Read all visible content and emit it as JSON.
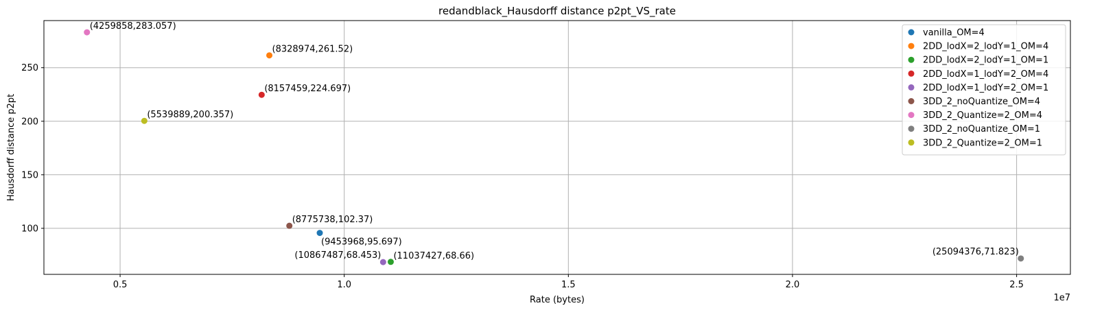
{
  "chart_data": {
    "type": "scatter",
    "title": "redandblack_Hausdorff distance p2pt_VS_rate",
    "xlabel": "Rate (bytes)",
    "ylabel": "Hausdorff distance p2pt",
    "x_offset_text": "1e7",
    "x_scale": 10000000,
    "xlim": [
      3300000,
      26200000
    ],
    "ylim": [
      57,
      294
    ],
    "x_ticks": [
      {
        "value": 5000000,
        "label": "0.5"
      },
      {
        "value": 10000000,
        "label": "1.0"
      },
      {
        "value": 15000000,
        "label": "1.5"
      },
      {
        "value": 20000000,
        "label": "2.0"
      },
      {
        "value": 25000000,
        "label": "2.5"
      }
    ],
    "y_ticks": [
      {
        "value": 100,
        "label": "100"
      },
      {
        "value": 150,
        "label": "150"
      },
      {
        "value": 200,
        "label": "200"
      },
      {
        "value": 250,
        "label": "250"
      }
    ],
    "grid": true,
    "legend_position": "top-right",
    "series": [
      {
        "name": "vanilla_OM=4",
        "color": "#1f77b4",
        "x": 9453968,
        "y": 95.697,
        "label": "(9453968,95.697)",
        "label_pos": "below-right"
      },
      {
        "name": "2DD_lodX=2_lodY=1_OM=4",
        "color": "#ff7f0e",
        "x": 8328974,
        "y": 261.52,
        "label": "(8328974,261.52)",
        "label_pos": "above-right"
      },
      {
        "name": "2DD_lodX=2_lodY=1_OM=1",
        "color": "#2ca02c",
        "x": 11037427,
        "y": 68.66,
        "label": "(11037427,68.66)",
        "label_pos": "above-right"
      },
      {
        "name": "2DD_lodX=1_lodY=2_OM=4",
        "color": "#d62728",
        "x": 8157459,
        "y": 224.697,
        "label": "(8157459,224.697)",
        "label_pos": "above-right"
      },
      {
        "name": "2DD_lodX=1_lodY=2_OM=1",
        "color": "#9467bd",
        "x": 10867487,
        "y": 68.453,
        "label": "(10867487,68.453)",
        "label_pos": "above-left"
      },
      {
        "name": "3DD_2_noQuantize_OM=4",
        "color": "#8c564b",
        "x": 8775738,
        "y": 102.37,
        "label": "(8775738,102.37)",
        "label_pos": "above-right"
      },
      {
        "name": "3DD_2_Quantize=2_OM=4",
        "color": "#e377c2",
        "x": 4259858,
        "y": 283.057,
        "label": "(4259858,283.057)",
        "label_pos": "above-right"
      },
      {
        "name": "3DD_2_noQuantize_OM=1",
        "color": "#7f7f7f",
        "x": 25094376,
        "y": 71.823,
        "label": "(25094376,71.823)",
        "label_pos": "above-left"
      },
      {
        "name": "3DD_2_Quantize=2_OM=1",
        "color": "#bcbd22",
        "x": 5539889,
        "y": 200.357,
        "label": "(5539889,200.357)",
        "label_pos": "above-right"
      }
    ]
  }
}
